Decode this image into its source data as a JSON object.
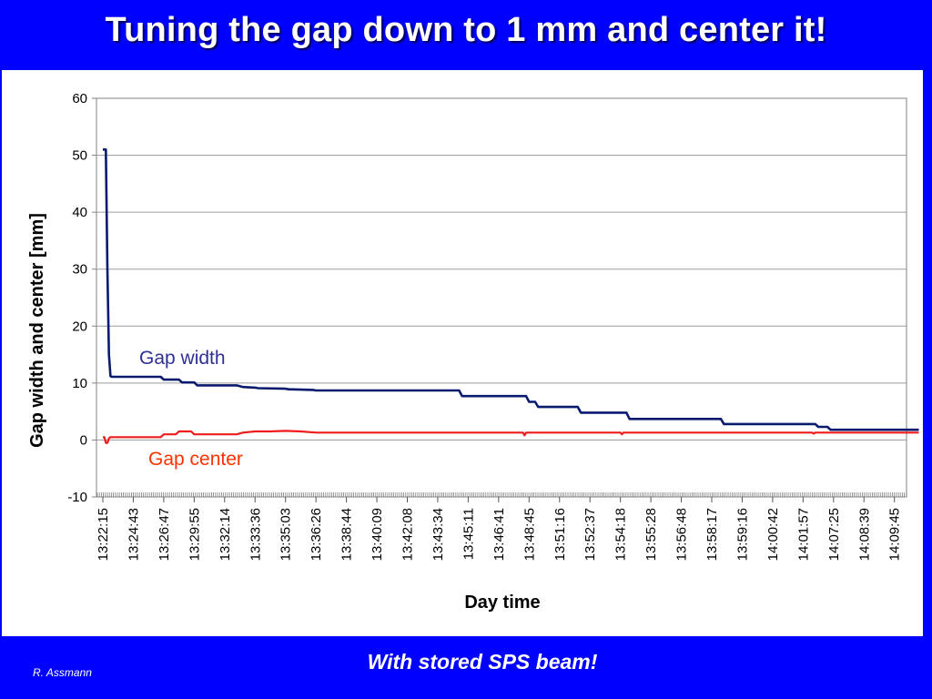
{
  "slide": {
    "title": "Tuning the gap down to 1 mm and center it!",
    "footer_note": "With stored SPS beam!",
    "author": "R. Assmann"
  },
  "colors": {
    "background": "#0000ff",
    "gap_width": "#0a1a6e",
    "gap_center": "#ee1c1c",
    "grid": "#9a9a9a"
  },
  "chart_data": {
    "type": "line",
    "title": "",
    "xlabel": "Day time",
    "ylabel": "Gap width and center [mm]",
    "ylim": [
      -10,
      60
    ],
    "yticks": [
      -10,
      0,
      10,
      20,
      30,
      40,
      50,
      60
    ],
    "grid": true,
    "x_ticks": [
      "13:22:15",
      "13:24:43",
      "13:26:47",
      "13:29:55",
      "13:32:14",
      "13:33:36",
      "13:35:03",
      "13:36:26",
      "13:38:44",
      "13:40:09",
      "13:42:08",
      "13:43:34",
      "13:45:11",
      "13:46:41",
      "13:48:45",
      "13:51:16",
      "13:52:37",
      "13:54:18",
      "13:55:28",
      "13:56:48",
      "13:58:17",
      "13:59:16",
      "14:00:42",
      "14:01:57",
      "14:07:25",
      "14:08:39",
      "14:09:45"
    ],
    "x_index_range": [
      0,
      26.8
    ],
    "series": [
      {
        "name": "Gap width",
        "label": "Gap width",
        "color": "#0a1a6e",
        "x": [
          0,
          0.1,
          0.15,
          0.2,
          0.25,
          0.3,
          1,
          1.9,
          2,
          2.5,
          2.6,
          3,
          3.1,
          4.4,
          4.6,
          5,
          5.1,
          6,
          6.1,
          6.9,
          7,
          8,
          10,
          11.7,
          11.8,
          13.9,
          14.0,
          14.2,
          14.3,
          15.6,
          15.7,
          17.2,
          17.3,
          20.3,
          20.4,
          23.4,
          23.5,
          23.8,
          23.9,
          26.8
        ],
        "y": [
          51,
          51,
          30,
          15,
          11.2,
          11.1,
          11.1,
          11.1,
          10.6,
          10.6,
          10.1,
          10.1,
          9.6,
          9.6,
          9.3,
          9.2,
          9.1,
          9.0,
          8.9,
          8.8,
          8.7,
          8.7,
          8.7,
          8.7,
          7.7,
          7.7,
          6.7,
          6.7,
          5.8,
          5.8,
          4.8,
          4.8,
          3.7,
          3.7,
          2.8,
          2.8,
          2.3,
          2.3,
          1.8,
          1.8
        ]
      },
      {
        "name": "Gap center",
        "label": "Gap center",
        "color": "#ee1c1c",
        "x": [
          0,
          0.05,
          0.1,
          0.15,
          0.2,
          0.25,
          0.3,
          1,
          1.9,
          2,
          2.4,
          2.5,
          2.9,
          3,
          3.4,
          3.5,
          4,
          4.4,
          4.6,
          5,
          5.5,
          6,
          6.5,
          7,
          8,
          10,
          13.8,
          13.85,
          13.9,
          17.0,
          17.05,
          17.1,
          23.3,
          23.35,
          23.4,
          26.8
        ],
        "y": [
          0.5,
          0.5,
          -0.5,
          -0.5,
          0.3,
          0.5,
          0.5,
          0.5,
          0.5,
          1.0,
          1.0,
          1.5,
          1.5,
          1.0,
          1.0,
          1.0,
          1.0,
          1.0,
          1.3,
          1.5,
          1.5,
          1.6,
          1.5,
          1.3,
          1.3,
          1.3,
          1.3,
          0.8,
          1.3,
          1.3,
          1.0,
          1.3,
          1.3,
          1.1,
          1.3,
          1.3
        ]
      }
    ]
  }
}
